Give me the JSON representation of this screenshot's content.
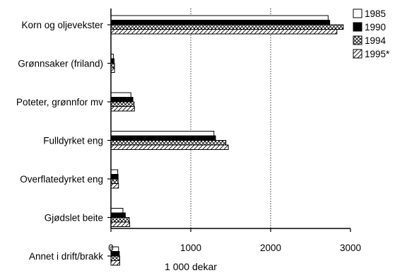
{
  "chart_data": {
    "type": "bar",
    "orientation": "horizontal",
    "title": "",
    "xlabel": "1 000 dekar",
    "ylabel": "",
    "xlim": [
      0,
      3000
    ],
    "xticks": [
      0,
      1000,
      2000,
      3000
    ],
    "xtick_labels": [
      "0",
      "1000",
      "2000",
      "3000"
    ],
    "grid": "dotted vertical lines at 1000 and 2000",
    "legend_position": "top-right",
    "categories": [
      "Korn og oljevekster",
      "Grønnsaker (friland)",
      "Poteter, grønnfor mv",
      "Fulldyrket eng",
      "Overflatedyrket eng",
      "Gjødslet beite",
      "Annet i drift/brakk"
    ],
    "series": [
      {
        "name": "1985",
        "pattern": "white",
        "values": [
          2720,
          30,
          250,
          1290,
          85,
          150,
          95
        ]
      },
      {
        "name": "1990",
        "pattern": "black",
        "values": [
          2740,
          40,
          275,
          1310,
          90,
          180,
          105
        ]
      },
      {
        "name": "1994",
        "pattern": "crosshatch",
        "values": [
          2910,
          45,
          290,
          1440,
          90,
          230,
          110
        ]
      },
      {
        "name": "1995*",
        "pattern": "diagonal",
        "values": [
          2830,
          45,
          295,
          1470,
          95,
          235,
          110
        ]
      }
    ]
  }
}
